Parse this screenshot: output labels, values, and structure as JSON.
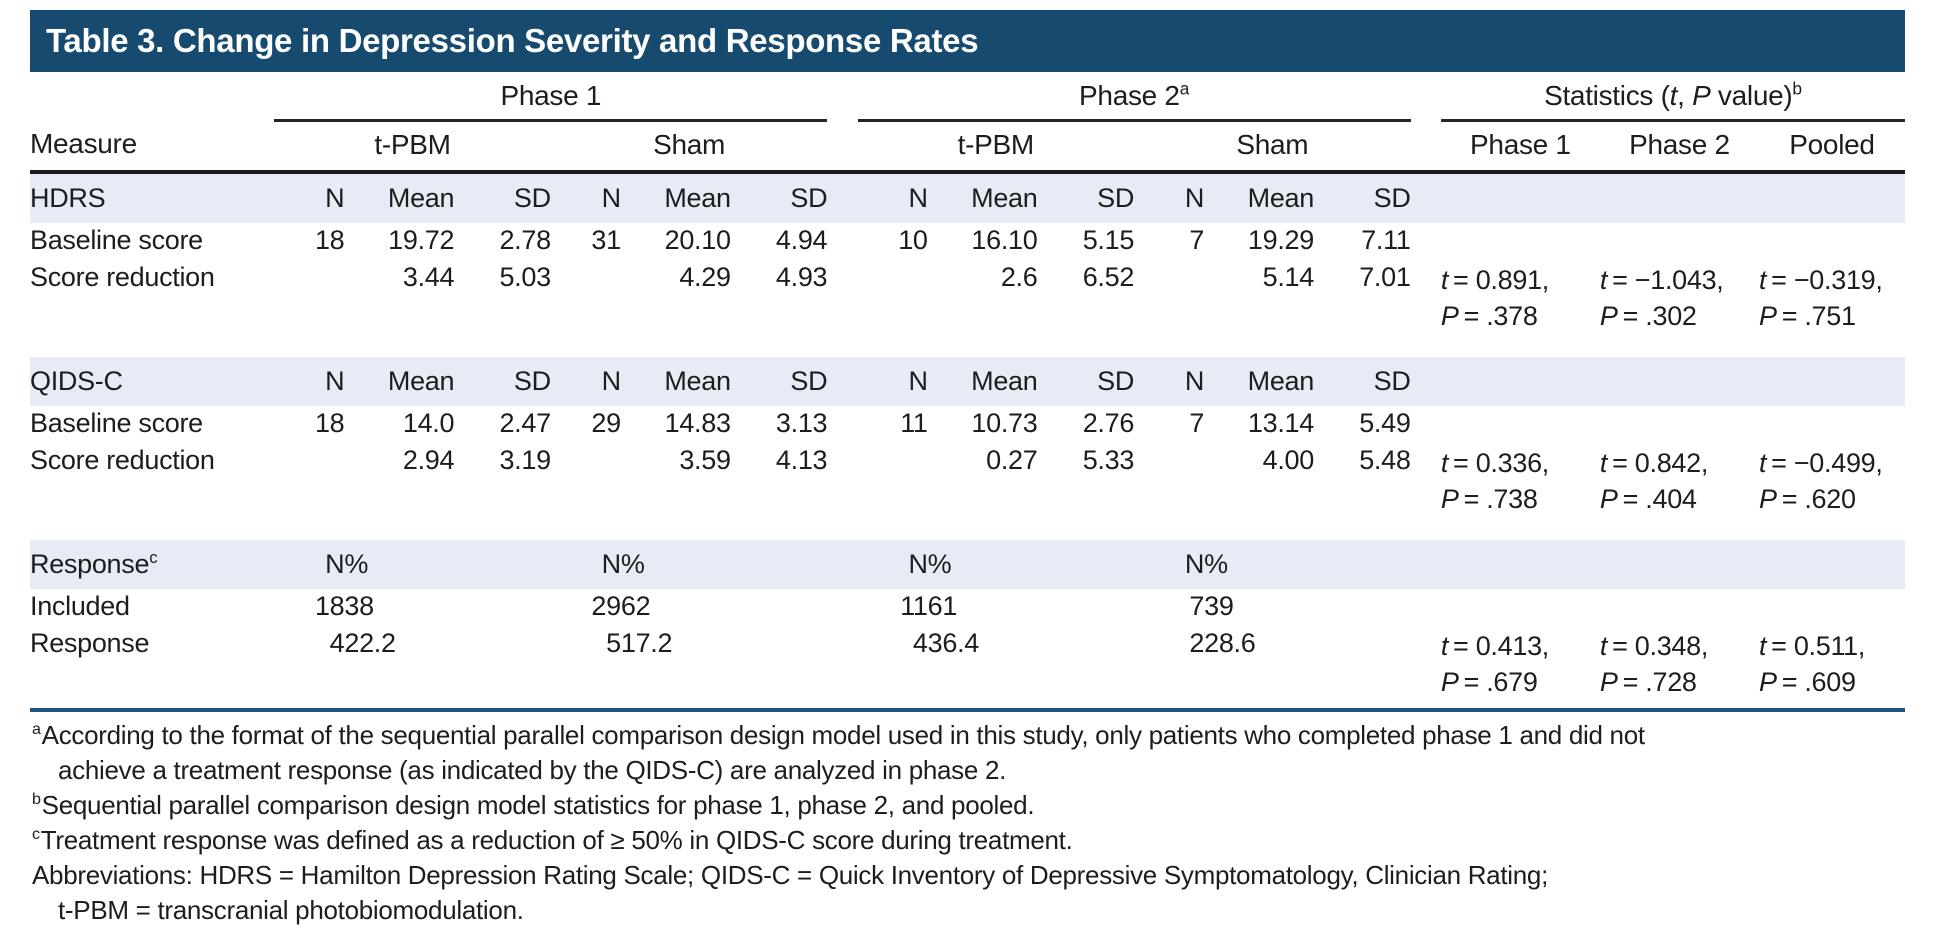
{
  "title": "Table 3. Change in Depression Severity and Response Rates",
  "colors": {
    "header_bg": "#174a6f",
    "band_bg": "#e6ebf6",
    "rule_blue": "#1a5680"
  },
  "stat_syms": {
    "t": "t",
    "p": "P"
  },
  "header": {
    "measure_label": "Measure",
    "groups": [
      {
        "label": "Phase 1",
        "sup": ""
      },
      {
        "label": "Phase 2",
        "sup": "a"
      }
    ],
    "stats_title": {
      "pre": "Statistics (",
      "t": "t",
      "mid": ", ",
      "p": "P",
      "post": " value)",
      "sup": "b"
    },
    "subgroups": [
      "t-PBM",
      "Sham",
      "t-PBM",
      "Sham"
    ],
    "stat_cols": [
      "Phase 1",
      "Phase 2",
      "Pooled"
    ]
  },
  "sections": [
    {
      "label": "HDRS",
      "sup": "",
      "cols": [
        "N",
        "Mean",
        "SD",
        "N",
        "Mean",
        "SD",
        "N",
        "Mean",
        "SD",
        "N",
        "Mean",
        "SD"
      ],
      "rows": [
        {
          "label": "Baseline score",
          "values": [
            "18",
            "19.72",
            "2.78",
            "31",
            "20.10",
            "4.94",
            "10",
            "16.10",
            "5.15",
            "7",
            "19.29",
            "7.11"
          ]
        },
        {
          "label": "Score reduction",
          "values": [
            "",
            "3.44",
            "5.03",
            "",
            "4.29",
            "4.93",
            "",
            "2.6",
            "6.52",
            "",
            "5.14",
            "7.01"
          ],
          "stats": [
            {
              "t": "= 0.891,",
              "p": "= .378"
            },
            {
              "t": "= −1.043,",
              "p": "= .302"
            },
            {
              "t": "= −0.319,",
              "p": "= .751"
            }
          ]
        }
      ]
    },
    {
      "label": "QIDS-C",
      "sup": "",
      "cols": [
        "N",
        "Mean",
        "SD",
        "N",
        "Mean",
        "SD",
        "N",
        "Mean",
        "SD",
        "N",
        "Mean",
        "SD"
      ],
      "rows": [
        {
          "label": "Baseline score",
          "values": [
            "18",
            "14.0",
            "2.47",
            "29",
            "14.83",
            "3.13",
            "11",
            "10.73",
            "2.76",
            "7",
            "13.14",
            "5.49"
          ]
        },
        {
          "label": "Score reduction",
          "values": [
            "",
            "2.94",
            "3.19",
            "",
            "3.59",
            "4.13",
            "",
            "0.27",
            "5.33",
            "",
            "4.00",
            "5.48"
          ],
          "stats": [
            {
              "t": "= 0.336,",
              "p": "= .738"
            },
            {
              "t": "= 0.842,",
              "p": "= .404"
            },
            {
              "t": "= −0.499,",
              "p": "= .620"
            }
          ]
        }
      ]
    },
    {
      "label": "Response",
      "sup": "c",
      "cols": [
        "N",
        "%",
        "",
        "N",
        "%",
        "",
        "N",
        "%",
        "",
        "N",
        "%",
        ""
      ],
      "rows": [
        {
          "label": "Included",
          "values": [
            "18",
            "38",
            "",
            "29",
            "62",
            "",
            "11",
            "61",
            "",
            "7",
            "39",
            ""
          ]
        },
        {
          "label": "Response",
          "values": [
            "4",
            "22.2",
            "",
            "5",
            "17.2",
            "",
            "4",
            "36.4",
            "",
            "2",
            "28.6",
            ""
          ],
          "stats": [
            {
              "t": "= 0.413,",
              "p": "= .679"
            },
            {
              "t": "= 0.348,",
              "p": "= .728"
            },
            {
              "t": "= 0.511,",
              "p": "= .609"
            }
          ]
        }
      ]
    }
  ],
  "footnotes": [
    {
      "marker": "a",
      "lines": [
        "According to the format of the sequential parallel comparison design model used in this study, only patients who completed phase 1 and did not",
        "achieve a treatment response (as indicated by the QIDS-C) are analyzed in phase 2."
      ]
    },
    {
      "marker": "b",
      "lines": [
        "Sequential parallel comparison design model statistics for phase 1, phase 2, and pooled."
      ]
    },
    {
      "marker": "c",
      "lines": [
        "Treatment response was defined as a reduction of ≥ 50% in QIDS-C score during treatment."
      ]
    },
    {
      "marker": "",
      "lines": [
        "Abbreviations: HDRS = Hamilton Depression Rating Scale; QIDS-C = Quick Inventory of Depressive Symptomatology, Clinician Rating;",
        "t-PBM = transcranial photobiomodulation."
      ]
    }
  ]
}
